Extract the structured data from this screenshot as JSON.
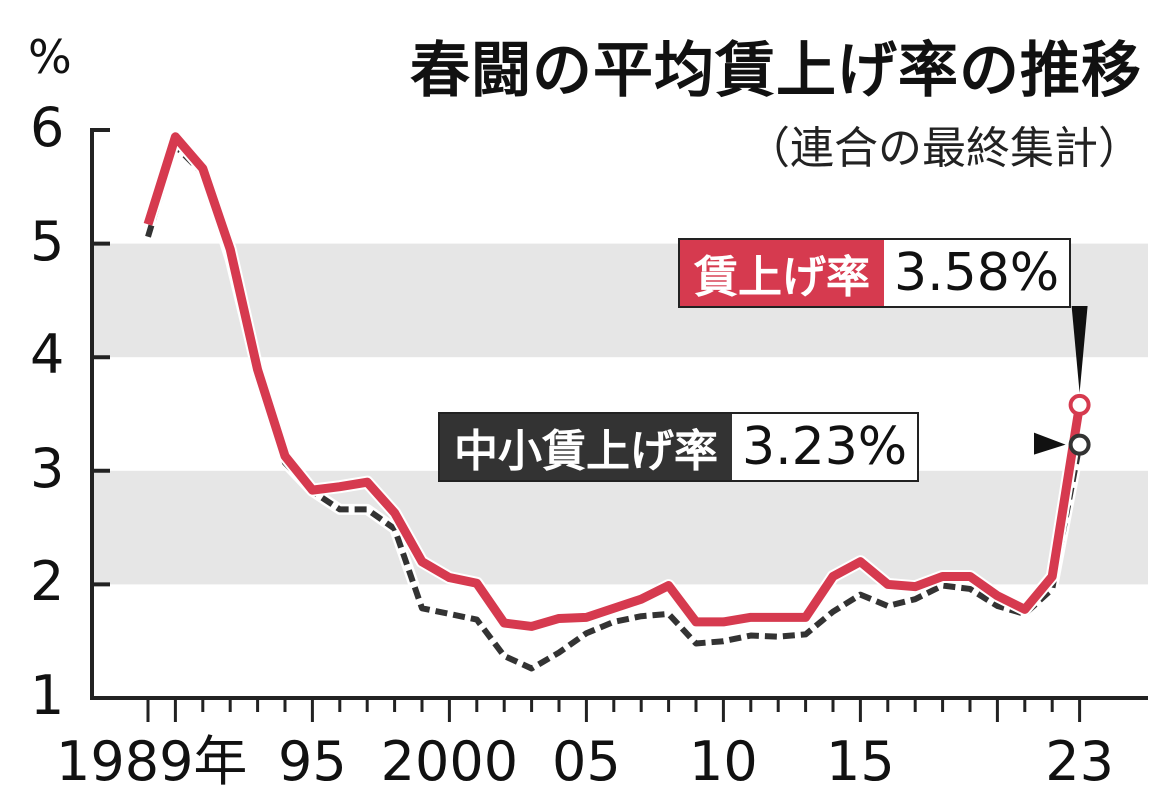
{
  "title": "春闘の平均賃上げ率の推移",
  "subtitle": "（連合の最終集計）",
  "unit": "%",
  "colors": {
    "wage": "#d63a4f",
    "sme": "#333333",
    "band": "#e6e6e6"
  },
  "x_tick_labels": [
    "1989年",
    "95",
    "2000",
    "05",
    "10",
    "15",
    "23"
  ],
  "y_tick_labels": [
    "1",
    "2",
    "3",
    "4",
    "5",
    "6"
  ],
  "labels": {
    "wage": {
      "name": "賃上げ率",
      "value": "3.58%"
    },
    "sme": {
      "name": "中小賃上げ率",
      "value": "3.23%"
    }
  },
  "chart_data": {
    "type": "line",
    "title": "春闘の平均賃上げ率の推移",
    "subtitle": "（連合の最終集計）",
    "ylabel": "%",
    "ylim": [
      1,
      6
    ],
    "x": [
      1989,
      1990,
      1991,
      1992,
      1993,
      1994,
      1995,
      1996,
      1997,
      1998,
      1999,
      2000,
      2001,
      2002,
      2003,
      2004,
      2005,
      2006,
      2007,
      2008,
      2009,
      2010,
      2011,
      2012,
      2013,
      2014,
      2015,
      2016,
      2017,
      2018,
      2019,
      2020,
      2021,
      2022,
      2023
    ],
    "series": [
      {
        "name": "賃上げ率",
        "style": "solid",
        "values": [
          5.17,
          5.94,
          5.66,
          4.95,
          3.89,
          3.13,
          2.83,
          2.86,
          2.9,
          2.63,
          2.2,
          2.06,
          2.01,
          1.66,
          1.63,
          1.7,
          1.71,
          1.79,
          1.87,
          1.99,
          1.67,
          1.67,
          1.71,
          1.71,
          1.71,
          2.07,
          2.2,
          2.0,
          1.98,
          2.07,
          2.07,
          1.9,
          1.78,
          2.07,
          3.58
        ]
      },
      {
        "name": "中小賃上げ率",
        "style": "dashed",
        "values": [
          5.06,
          5.86,
          5.62,
          4.86,
          3.87,
          3.07,
          2.82,
          2.66,
          2.66,
          2.49,
          1.79,
          1.74,
          1.69,
          1.37,
          1.26,
          1.4,
          1.57,
          1.67,
          1.72,
          1.74,
          1.48,
          1.5,
          1.55,
          1.54,
          1.56,
          1.76,
          1.91,
          1.81,
          1.87,
          1.99,
          1.96,
          1.81,
          1.74,
          1.96,
          3.23
        ]
      }
    ]
  }
}
